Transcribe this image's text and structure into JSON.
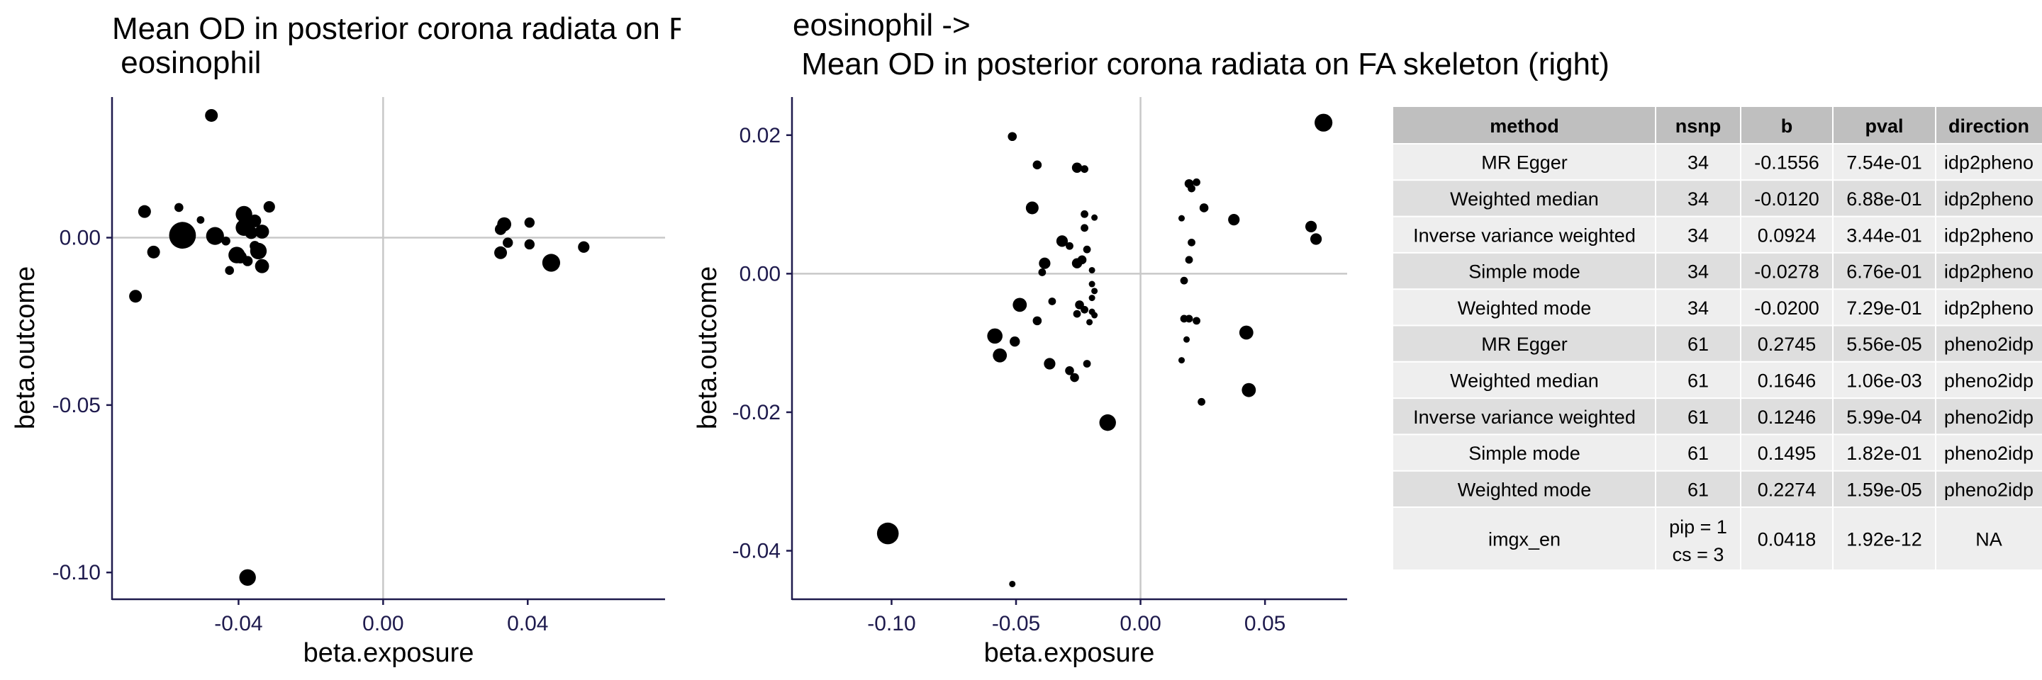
{
  "chart_data": [
    {
      "type": "scatter",
      "title_line1": "Mean OD in posterior corona radiata on FA skeleton (right) ->",
      "title_line2": " eosinophil",
      "xlabel": "beta.exposure",
      "ylabel": "beta.outcome",
      "xlim": [
        -0.075,
        0.078
      ],
      "ylim": [
        -0.108,
        0.042
      ],
      "xticks": [
        -0.04,
        0.0,
        0.04
      ],
      "xtick_labels": [
        "-0.04",
        "0.00",
        "0.04"
      ],
      "yticks": [
        0.0,
        -0.05,
        -0.1
      ],
      "ytick_labels": [
        "0.00",
        "-0.05",
        "-0.10"
      ],
      "ref_lines": {
        "x": 0,
        "y": 0
      },
      "points": [
        {
          "x": -0.0475,
          "y": 0.0365,
          "s": 1.0
        },
        {
          "x": -0.0685,
          "y": -0.0175,
          "s": 1.0
        },
        {
          "x": -0.066,
          "y": 0.0078,
          "s": 1.0
        },
        {
          "x": -0.0635,
          "y": -0.0043,
          "s": 1.0
        },
        {
          "x": -0.0565,
          "y": 0.009,
          "s": 0.7
        },
        {
          "x": -0.0555,
          "y": 0.0007,
          "s": 2.1
        },
        {
          "x": -0.0505,
          "y": 0.0053,
          "s": 0.6
        },
        {
          "x": -0.0465,
          "y": 0.0005,
          "s": 1.4
        },
        {
          "x": -0.0435,
          "y": -0.001,
          "s": 0.7
        },
        {
          "x": -0.0425,
          "y": -0.0098,
          "s": 0.7
        },
        {
          "x": -0.0405,
          "y": -0.0052,
          "s": 1.3
        },
        {
          "x": -0.0395,
          "y": -0.0058,
          "s": 1.0
        },
        {
          "x": -0.0385,
          "y": 0.007,
          "s": 1.3
        },
        {
          "x": -0.0385,
          "y": 0.003,
          "s": 1.3
        },
        {
          "x": -0.0375,
          "y": -0.007,
          "s": 0.8
        },
        {
          "x": -0.0365,
          "y": 0.0015,
          "s": 1.0
        },
        {
          "x": -0.0355,
          "y": 0.005,
          "s": 1.0
        },
        {
          "x": -0.0355,
          "y": -0.0025,
          "s": 0.8
        },
        {
          "x": -0.0345,
          "y": -0.004,
          "s": 1.3
        },
        {
          "x": -0.0335,
          "y": 0.0018,
          "s": 1.1
        },
        {
          "x": -0.0335,
          "y": -0.0085,
          "s": 1.1
        },
        {
          "x": -0.0315,
          "y": 0.0092,
          "s": 0.9
        },
        {
          "x": -0.0375,
          "y": -0.1015,
          "s": 1.3
        },
        {
          "x": 0.0325,
          "y": 0.0025,
          "s": 0.9
        },
        {
          "x": 0.0335,
          "y": 0.004,
          "s": 1.1
        },
        {
          "x": 0.0325,
          "y": -0.0045,
          "s": 1.0
        },
        {
          "x": 0.0345,
          "y": -0.0015,
          "s": 0.8
        },
        {
          "x": 0.0405,
          "y": 0.0045,
          "s": 0.8
        },
        {
          "x": 0.0405,
          "y": -0.002,
          "s": 0.8
        },
        {
          "x": 0.0465,
          "y": -0.0075,
          "s": 1.4
        },
        {
          "x": 0.0555,
          "y": -0.0028,
          "s": 0.9
        }
      ]
    },
    {
      "type": "scatter",
      "title_line1": "eosinophil ->",
      "title_line2": " Mean OD in posterior corona radiata on FA skeleton (right)",
      "xlabel": "beta.exposure",
      "ylabel": "beta.outcome",
      "xlim": [
        -0.14,
        0.083
      ],
      "ylim": [
        -0.047,
        0.0255
      ],
      "xticks": [
        -0.1,
        -0.05,
        0.0,
        0.05
      ],
      "xtick_labels": [
        "-0.10",
        "-0.05",
        "0.00",
        "0.05"
      ],
      "yticks": [
        0.02,
        0.0,
        -0.02,
        -0.04
      ],
      "ytick_labels": [
        "0.02",
        "0.00",
        "-0.02",
        "-0.04"
      ],
      "ref_lines": {
        "x": 0,
        "y": 0
      },
      "points": [
        {
          "x": -0.0132,
          "y": -0.0215,
          "s": 1.3
        },
        {
          "x": -0.1015,
          "y": -0.0375,
          "s": 1.7
        },
        {
          "x": -0.0515,
          "y": 0.0198,
          "s": 0.7
        },
        {
          "x": -0.0415,
          "y": 0.0157,
          "s": 0.7
        },
        {
          "x": -0.0435,
          "y": 0.0095,
          "s": 1.0
        },
        {
          "x": -0.0585,
          "y": -0.009,
          "s": 1.2
        },
        {
          "x": -0.0565,
          "y": -0.0118,
          "s": 1.1
        },
        {
          "x": -0.0485,
          "y": -0.0045,
          "s": 1.1
        },
        {
          "x": -0.0505,
          "y": -0.0098,
          "s": 0.8
        },
        {
          "x": -0.0415,
          "y": -0.0068,
          "s": 0.7
        },
        {
          "x": -0.0385,
          "y": 0.0015,
          "s": 0.9
        },
        {
          "x": -0.0395,
          "y": 0.0002,
          "s": 0.6
        },
        {
          "x": -0.0365,
          "y": -0.013,
          "s": 0.9
        },
        {
          "x": -0.0355,
          "y": -0.004,
          "s": 0.6
        },
        {
          "x": -0.0315,
          "y": 0.0047,
          "s": 0.9
        },
        {
          "x": -0.0285,
          "y": 0.004,
          "s": 0.6
        },
        {
          "x": -0.0255,
          "y": 0.0153,
          "s": 0.8
        },
        {
          "x": -0.0225,
          "y": 0.0151,
          "s": 0.6
        },
        {
          "x": -0.0255,
          "y": 0.0015,
          "s": 0.8
        },
        {
          "x": -0.0235,
          "y": 0.002,
          "s": 0.7
        },
        {
          "x": -0.0215,
          "y": 0.0035,
          "s": 0.6
        },
        {
          "x": -0.0225,
          "y": 0.0086,
          "s": 0.6
        },
        {
          "x": -0.0225,
          "y": 0.0066,
          "s": 0.6
        },
        {
          "x": -0.0185,
          "y": 0.0081,
          "s": 0.5
        },
        {
          "x": -0.0245,
          "y": -0.0045,
          "s": 0.7
        },
        {
          "x": -0.0225,
          "y": -0.0052,
          "s": 0.6
        },
        {
          "x": -0.0255,
          "y": -0.0058,
          "s": 0.6
        },
        {
          "x": -0.0285,
          "y": -0.014,
          "s": 0.7
        },
        {
          "x": -0.0265,
          "y": -0.015,
          "s": 0.7
        },
        {
          "x": -0.0215,
          "y": -0.013,
          "s": 0.6
        },
        {
          "x": -0.0195,
          "y": 0.0005,
          "s": 0.5
        },
        {
          "x": -0.0195,
          "y": -0.0015,
          "s": 0.5
        },
        {
          "x": -0.0195,
          "y": -0.0035,
          "s": 0.5
        },
        {
          "x": -0.0195,
          "y": -0.0055,
          "s": 0.5
        },
        {
          "x": -0.0205,
          "y": -0.007,
          "s": 0.5
        },
        {
          "x": -0.0185,
          "y": -0.0025,
          "s": 0.5
        },
        {
          "x": -0.0185,
          "y": -0.006,
          "s": 0.5
        },
        {
          "x": -0.0515,
          "y": -0.0448,
          "s": 0.5
        },
        {
          "x": 0.0195,
          "y": 0.013,
          "s": 0.7
        },
        {
          "x": 0.0225,
          "y": 0.0132,
          "s": 0.6
        },
        {
          "x": 0.0205,
          "y": 0.0123,
          "s": 0.6
        },
        {
          "x": 0.0255,
          "y": 0.0095,
          "s": 0.7
        },
        {
          "x": 0.0165,
          "y": 0.008,
          "s": 0.5
        },
        {
          "x": 0.0205,
          "y": 0.0045,
          "s": 0.6
        },
        {
          "x": 0.0195,
          "y": 0.002,
          "s": 0.6
        },
        {
          "x": 0.0175,
          "y": -0.001,
          "s": 0.6
        },
        {
          "x": 0.0175,
          "y": -0.0065,
          "s": 0.6
        },
        {
          "x": 0.0195,
          "y": -0.0065,
          "s": 0.6
        },
        {
          "x": 0.0225,
          "y": -0.0068,
          "s": 0.6
        },
        {
          "x": 0.0185,
          "y": -0.0095,
          "s": 0.5
        },
        {
          "x": 0.0165,
          "y": -0.0125,
          "s": 0.5
        },
        {
          "x": 0.0245,
          "y": -0.0185,
          "s": 0.6
        },
        {
          "x": 0.0375,
          "y": 0.0078,
          "s": 0.9
        },
        {
          "x": 0.0425,
          "y": -0.0085,
          "s": 1.1
        },
        {
          "x": 0.0435,
          "y": -0.0168,
          "s": 1.1
        },
        {
          "x": 0.0685,
          "y": 0.0068,
          "s": 0.9
        },
        {
          "x": 0.0705,
          "y": 0.005,
          "s": 0.9
        },
        {
          "x": 0.0735,
          "y": 0.0218,
          "s": 1.4
        }
      ]
    },
    {
      "type": "table",
      "columns": [
        "method",
        "nsnp",
        "b",
        "pval",
        "direction"
      ],
      "rows": [
        {
          "num": "1",
          "method": "MR Egger",
          "nsnp": "34",
          "b": "-0.1556",
          "pval": "7.54e-01",
          "direction": "idp2pheno"
        },
        {
          "num": "2",
          "method": "Weighted median",
          "nsnp": "34",
          "b": "-0.0120",
          "pval": "6.88e-01",
          "direction": "idp2pheno"
        },
        {
          "num": "3",
          "method": "Inverse variance weighted",
          "nsnp": "34",
          "b": "0.0924",
          "pval": "3.44e-01",
          "direction": "idp2pheno"
        },
        {
          "num": "4",
          "method": "Simple mode",
          "nsnp": "34",
          "b": "-0.0278",
          "pval": "6.76e-01",
          "direction": "idp2pheno"
        },
        {
          "num": "5",
          "method": "Weighted mode",
          "nsnp": "34",
          "b": "-0.0200",
          "pval": "7.29e-01",
          "direction": "idp2pheno"
        },
        {
          "num": "6",
          "method": "MR Egger",
          "nsnp": "61",
          "b": "0.2745",
          "pval": "5.56e-05",
          "direction": "pheno2idp"
        },
        {
          "num": "7",
          "method": "Weighted median",
          "nsnp": "61",
          "b": "0.1646",
          "pval": "1.06e-03",
          "direction": "pheno2idp"
        },
        {
          "num": "8",
          "method": "Inverse variance weighted",
          "nsnp": "61",
          "b": "0.1246",
          "pval": "5.99e-04",
          "direction": "pheno2idp"
        },
        {
          "num": "9",
          "method": "Simple mode",
          "nsnp": "61",
          "b": "0.1495",
          "pval": "1.82e-01",
          "direction": "pheno2idp"
        },
        {
          "num": "10",
          "method": "Weighted mode",
          "nsnp": "61",
          "b": "0.2274",
          "pval": "1.59e-05",
          "direction": "pheno2idp"
        },
        {
          "num": "11",
          "method": "imgx_en",
          "nsnp": "pip = 1",
          "nsnp2": "cs = 3",
          "b": "0.0418",
          "pval": "1.92e-12",
          "direction": "NA"
        }
      ]
    }
  ]
}
